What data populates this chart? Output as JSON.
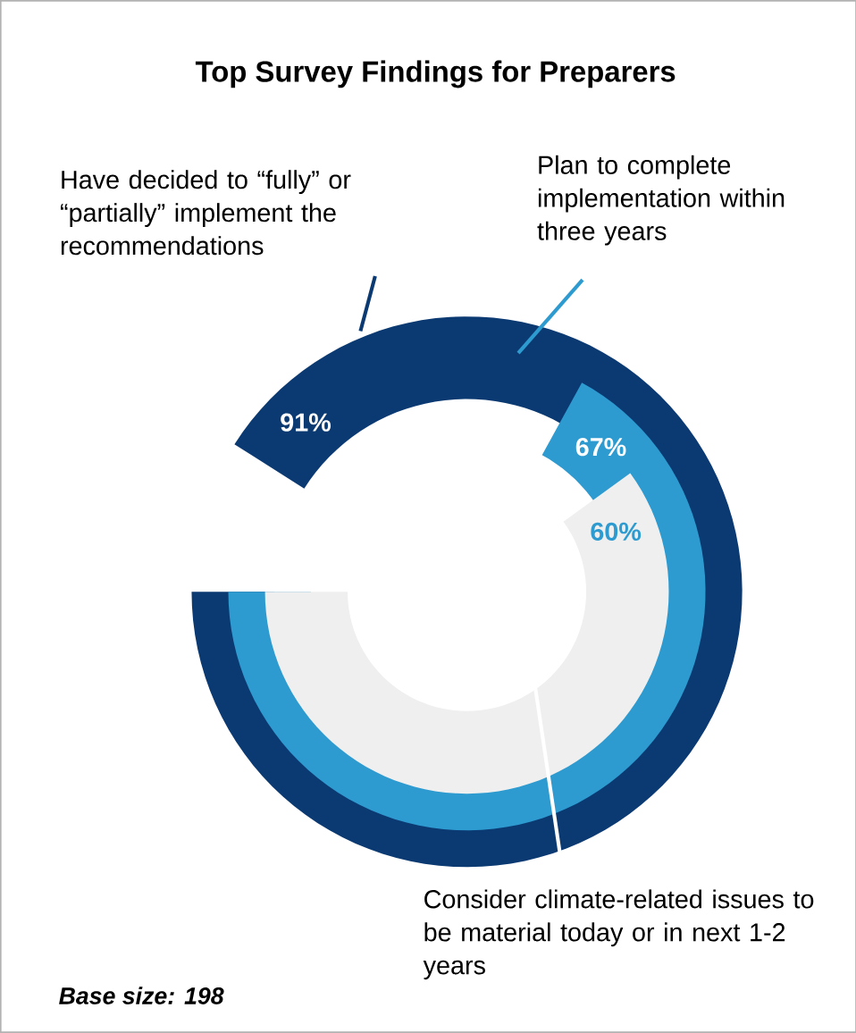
{
  "chart_data": {
    "type": "other",
    "title": "Top Survey Findings for Preparers",
    "categories": [
      "Have decided to “fully” or “partially” implement the recommendations",
      "Plan to complete implementation within three  years",
      "Consider climate-related issues to be material today or in next 1-2 years"
    ],
    "values": [
      91,
      67,
      60
    ],
    "value_labels": [
      "91%",
      "67%",
      "60%"
    ],
    "colors": [
      "#0b3a73",
      "#2e9bd0",
      "#efefef"
    ],
    "annotations": [
      "Base size: 198"
    ]
  }
}
